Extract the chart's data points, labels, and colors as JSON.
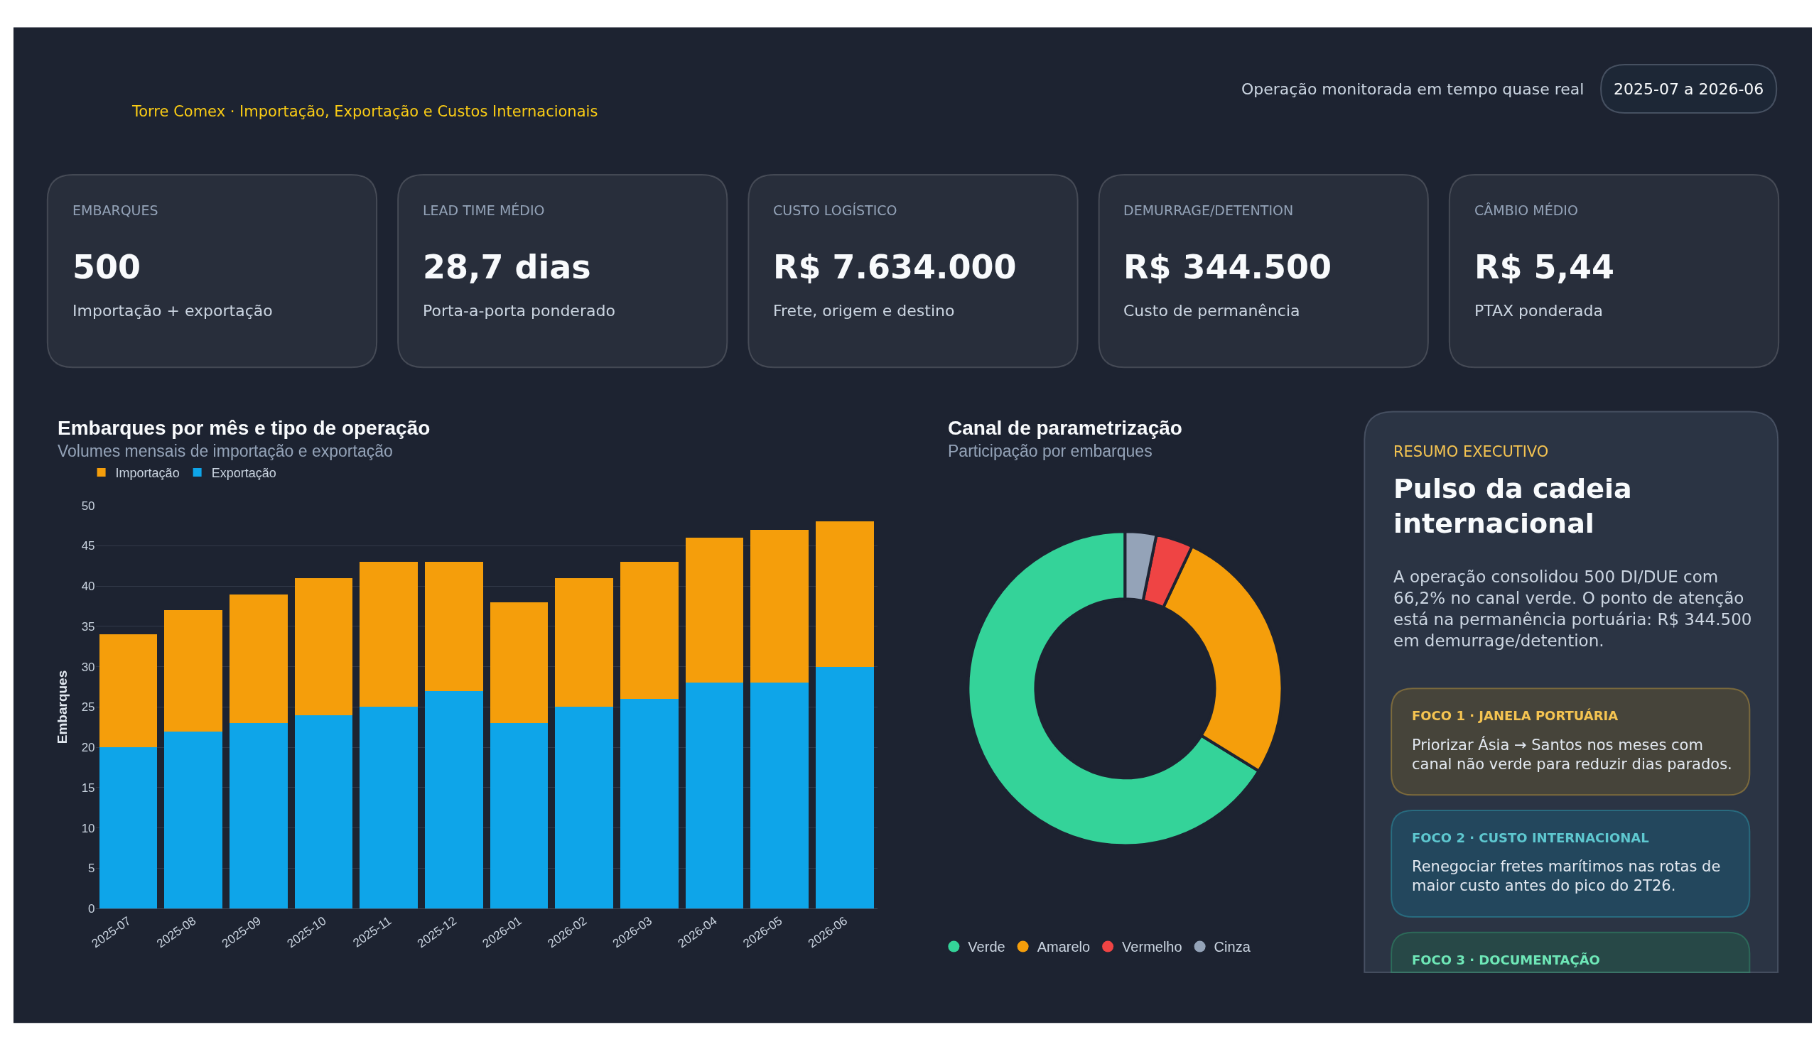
{
  "chart_data": [
    {
      "type": "other",
      "subtitle": "Torre Comex · Importação, Exportação e Custos Internacionais",
      "annotations": [
        "Operação monitorada em tempo quase real",
        "2025-07 a 2026-06"
      ]
    },
    {
      "type": "other",
      "title": "EMBARQUES",
      "annotations": [
        "500",
        "Importação + exportação"
      ]
    },
    {
      "type": "other",
      "title": "LEAD TIME MÉDIO",
      "annotations": [
        "28,7 dias",
        "Porta-a-porta ponderado"
      ]
    },
    {
      "type": "other",
      "title": "CUSTO LOGÍSTICO",
      "annotations": [
        "R$ 7.634.000",
        "Frete, origem e destino"
      ]
    },
    {
      "type": "other",
      "title": "DEMURRAGE/DETENTION",
      "annotations": [
        "R$ 344.500",
        "Custo de permanência"
      ]
    },
    {
      "type": "other",
      "title": "CÂMBIO MÉDIO",
      "annotations": [
        "R$ 5,44",
        "PTAX ponderada"
      ]
    },
    {
      "type": "bar",
      "title": "Embarques por mês e tipo de operação",
      "subtitle": "Volumes mensais de importação e exportação",
      "ylabel": "Embarques",
      "categories": [
        "2025-07",
        "2025-08",
        "2025-09",
        "2025-10",
        "2025-11",
        "2025-12",
        "2026-01",
        "2026-02",
        "2026-03",
        "2026-04",
        "2026-05",
        "2026-06"
      ],
      "stacked": true,
      "series": [
        {
          "name": "Exportação",
          "color": "#0ea5e9",
          "values": [
            20,
            22,
            23,
            24,
            25,
            27,
            23,
            25,
            26,
            28,
            28,
            30
          ]
        },
        {
          "name": "Importação",
          "color": "#f59e0b",
          "values": [
            14,
            15,
            16,
            17,
            18,
            16,
            15,
            16,
            17,
            18,
            19,
            18
          ]
        }
      ],
      "ylim": [
        0,
        50
      ],
      "yticks": [
        0,
        5,
        10,
        15,
        20,
        25,
        30,
        35,
        40,
        45,
        50
      ],
      "grid": "y",
      "legend": "top left"
    },
    {
      "type": "donut",
      "title": "Canal de parametrização",
      "subtitle": "Participação por embarques",
      "categories": [
        "Verde",
        "Amarelo",
        "Vermelho",
        "Cinza"
      ],
      "values": [
        66.2,
        26.8,
        3.8,
        3.2
      ],
      "colors": [
        "#34d399",
        "#f59e0b",
        "#ef4444",
        "#94a3b8"
      ],
      "legend": "bottom"
    },
    {
      "type": "other",
      "subtitle": "RESUMO EXECUTIVO",
      "title": "Pulso da cadeia internacional",
      "annotations": [
        "A operação consolidou 500 DI/DUE com 66,2% no canal verde. O ponto de atenção está na permanência portuária: R$ 344.500 em demurrage/detention.",
        "FOCO 1 · JANELA PORTUÁRIA",
        "Priorizar Ásia → Santos nos meses com canal não verde para reduzir dias parados.",
        "FOCO 2 · CUSTO INTERNACIONAL",
        "Renegociar fretes marítimos nas rotas de maior custo antes do pico do 2T26.",
        "FOCO 3 · DOCUMENTAÇÃO"
      ]
    }
  ]
}
